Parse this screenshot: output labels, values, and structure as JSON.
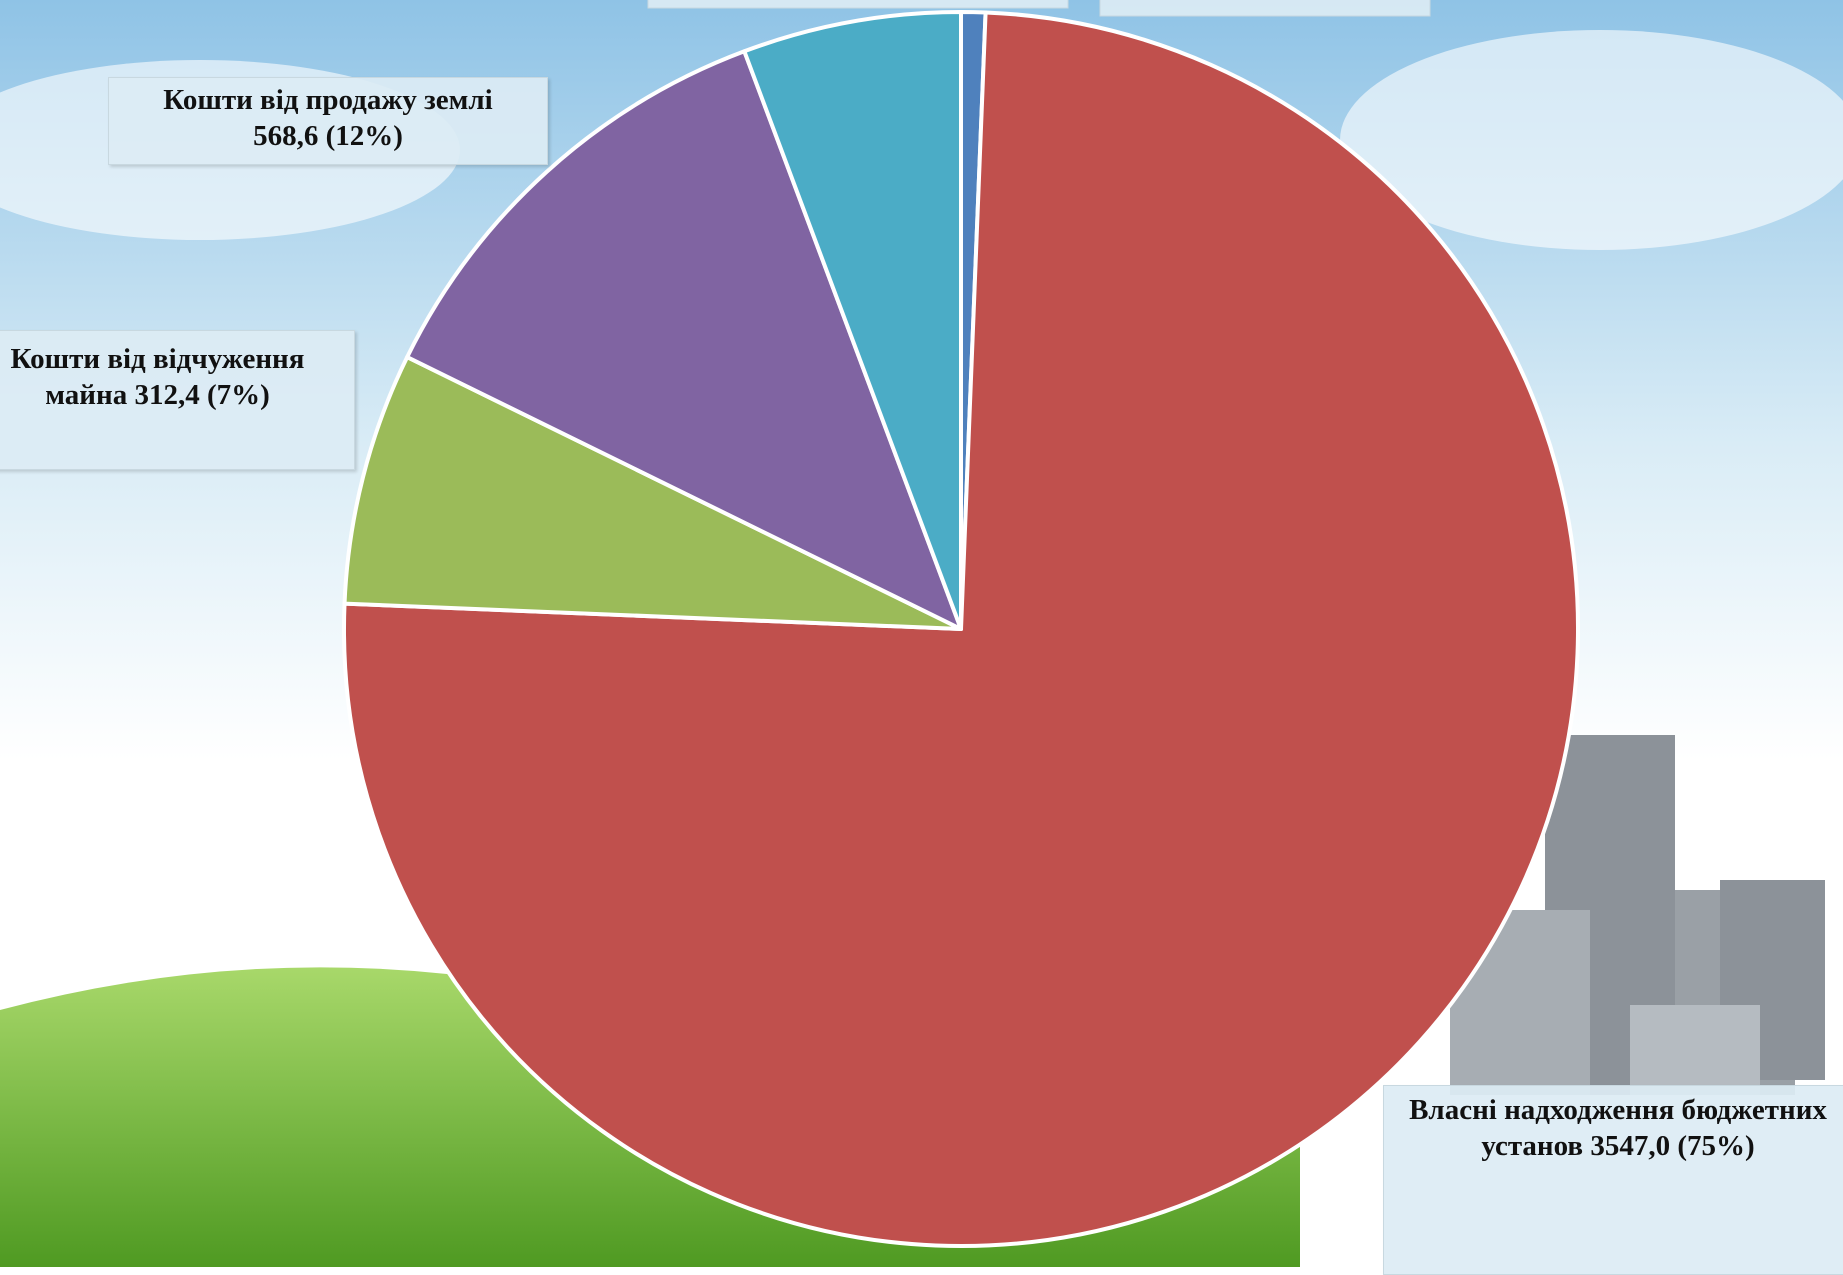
{
  "chart_data": {
    "type": "pie",
    "categories": [
      null,
      "Власні надходження бюджетних установ",
      "Кошти від відчуження майна",
      "Кошти від продажу землі",
      null
    ],
    "values": [
      30,
      3547.0,
      312.4,
      568.6,
      270
    ],
    "value_labels": [
      null,
      "3547,0 (75%)",
      "312,4 (7%)",
      "568,6 (12%)",
      null
    ],
    "colors": [
      "#4f81bd",
      "#c0504d",
      "#9bbb59",
      "#8064a2",
      "#4bacc6"
    ]
  }
}
